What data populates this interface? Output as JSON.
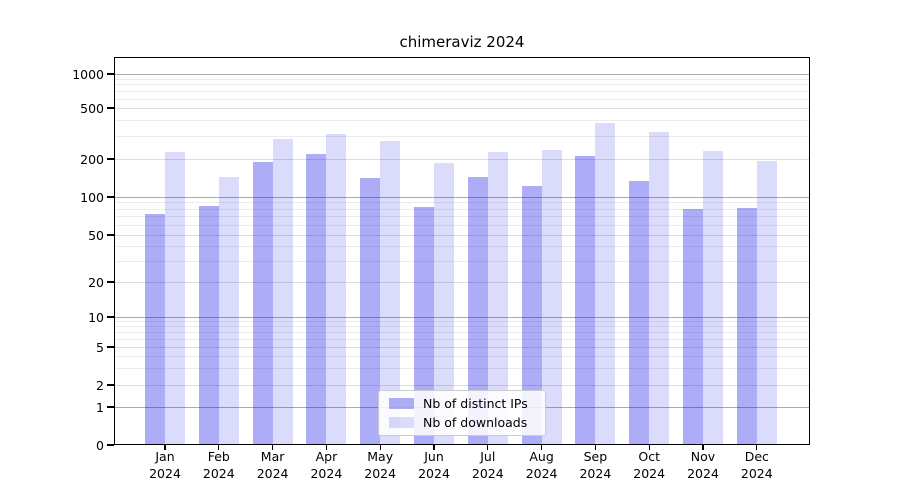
{
  "title": "chimeraviz 2024",
  "chart_data": {
    "type": "bar",
    "title": "chimeraviz 2024",
    "categories": [
      "Jan 2024",
      "Feb 2024",
      "Mar 2024",
      "Apr 2024",
      "May 2024",
      "Jun 2024",
      "Jul 2024",
      "Aug 2024",
      "Sep 2024",
      "Oct 2024",
      "Nov 2024",
      "Dec 2024"
    ],
    "month_labels": [
      "Jan",
      "Feb",
      "Mar",
      "Apr",
      "May",
      "Jun",
      "Jul",
      "Aug",
      "Sep",
      "Oct",
      "Nov",
      "Dec"
    ],
    "year_label": "2024",
    "series": [
      {
        "name": "Nb of distinct IPs",
        "color": "rgba(16,16,232,0.34)",
        "values": [
          73,
          85,
          188,
          219,
          141,
          83,
          145,
          122,
          212,
          135,
          80,
          82
        ]
      },
      {
        "name": "Nb of downloads",
        "color": "rgba(16,16,232,0.15)",
        "values": [
          226,
          145,
          288,
          314,
          274,
          186,
          226,
          233,
          382,
          326,
          232,
          194
        ]
      }
    ],
    "y_axis": {
      "scale": "symlog",
      "ticks": [
        0,
        1,
        2,
        5,
        10,
        20,
        50,
        100,
        200,
        500,
        1000
      ],
      "range": [
        0,
        1000
      ]
    },
    "grid": {
      "major_lines": [
        1,
        10,
        100,
        1000
      ],
      "mid_lines": [
        2,
        5,
        20,
        50,
        200,
        500
      ],
      "minor_lines": [
        3,
        4,
        6,
        7,
        8,
        9,
        30,
        40,
        60,
        70,
        80,
        90,
        300,
        400,
        600,
        700,
        800,
        900
      ]
    },
    "legend_position": "bottom-center",
    "style": {
      "axis_color": "#000000",
      "grid_major_color": "#ababab",
      "grid_minor_color": "#ececec",
      "background": "#ffffff"
    }
  }
}
